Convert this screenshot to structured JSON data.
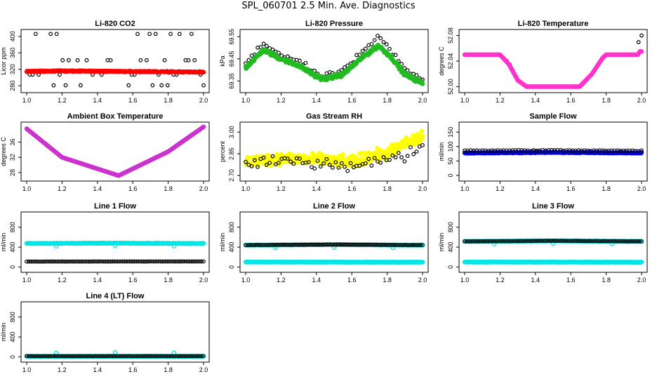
{
  "page": {
    "title": "SPL_060701  2.5 Min. Ave. Diagnostics"
  },
  "chart_data": [
    {
      "id": "co2",
      "type": "scatter",
      "title": "Li-820 CO2",
      "ylabel": "Licor ppm",
      "xlim": [
        1.0,
        2.0
      ],
      "ylim": [
        270,
        410
      ],
      "xticks": [
        1.0,
        1.2,
        1.4,
        1.6,
        1.8,
        2.0
      ],
      "xtick_labels": [
        "1.0",
        "1.2",
        "1.4",
        "1.6",
        "1.8",
        "2.0"
      ],
      "yticks": [
        280,
        320,
        360,
        400
      ],
      "ytick_labels": [
        "280",
        "320",
        "360",
        "400"
      ],
      "series": [
        {
          "name": "hourly",
          "color": "#000000",
          "style": "open",
          "density": "sparse",
          "levels": [
            406,
            342,
            307,
            281
          ],
          "values": []
        },
        {
          "name": "averaged",
          "color": "#ff0000",
          "style": "filled",
          "density": "dense",
          "values": [
            [
              1.0,
              315
            ],
            [
              1.25,
              316
            ],
            [
              1.5,
              315
            ],
            [
              1.75,
              314
            ],
            [
              2.0,
              313
            ]
          ]
        }
      ]
    },
    {
      "id": "pressure",
      "type": "scatter",
      "title": "Li-820 Pressure",
      "ylabel": "kPa",
      "xlim": [
        1.0,
        2.0
      ],
      "ylim": [
        69.31,
        69.57
      ],
      "xticks": [
        1.0,
        1.2,
        1.4,
        1.6,
        1.8,
        2.0
      ],
      "xtick_labels": [
        "1.0",
        "1.2",
        "1.4",
        "1.6",
        "1.8",
        "2.0"
      ],
      "yticks": [
        69.35,
        69.45,
        69.55
      ],
      "ytick_labels": [
        "69.35",
        "69.45",
        "69.55"
      ],
      "series": [
        {
          "name": "hourly",
          "color": "#000000",
          "style": "open",
          "density": "sparse",
          "noise": 0.015,
          "values": [
            [
              1.0,
              69.43
            ],
            [
              1.05,
              69.47
            ],
            [
              1.1,
              69.52
            ],
            [
              1.2,
              69.47
            ],
            [
              1.3,
              69.44
            ],
            [
              1.4,
              69.38
            ],
            [
              1.45,
              69.37
            ],
            [
              1.55,
              69.4
            ],
            [
              1.65,
              69.47
            ],
            [
              1.75,
              69.55
            ],
            [
              1.82,
              69.49
            ],
            [
              1.9,
              69.4
            ],
            [
              2.0,
              69.36
            ]
          ]
        },
        {
          "name": "averaged",
          "color": "#22bb22",
          "style": "filled",
          "density": "dense",
          "noise": 0.01,
          "values": [
            [
              1.0,
              69.41
            ],
            [
              1.05,
              69.45
            ],
            [
              1.1,
              69.49
            ],
            [
              1.2,
              69.45
            ],
            [
              1.3,
              69.42
            ],
            [
              1.4,
              69.37
            ],
            [
              1.45,
              69.36
            ],
            [
              1.55,
              69.38
            ],
            [
              1.65,
              69.45
            ],
            [
              1.75,
              69.51
            ],
            [
              1.82,
              69.46
            ],
            [
              1.9,
              69.38
            ],
            [
              2.0,
              69.34
            ]
          ]
        }
      ]
    },
    {
      "id": "temp",
      "type": "scatter",
      "title": "Li-820 Temperature",
      "ylabel": "degrees C",
      "xlim": [
        1.0,
        2.0
      ],
      "ylim": [
        51.995,
        52.085
      ],
      "xticks": [
        1.0,
        1.2,
        1.4,
        1.6,
        1.8,
        2.0
      ],
      "xtick_labels": [
        "1.0",
        "1.2",
        "1.4",
        "1.6",
        "1.8",
        "2.0"
      ],
      "yticks": [
        52.0,
        52.04,
        52.08
      ],
      "ytick_labels": [
        "52.00",
        "52.04",
        "52.08"
      ],
      "series": [
        {
          "name": "hourly",
          "color": "#000000",
          "style": "open",
          "density": "sparse",
          "values": [
            [
              1.0,
              52.05
            ],
            [
              1.2,
              52.05
            ],
            [
              1.25,
              52.037
            ],
            [
              1.3,
              52.01
            ],
            [
              1.35,
              52.0
            ],
            [
              1.65,
              52.0
            ],
            [
              1.72,
              52.02
            ],
            [
              1.78,
              52.045
            ],
            [
              1.8,
              52.05
            ],
            [
              1.97,
              52.05
            ],
            [
              1.99,
              52.08
            ]
          ]
        },
        {
          "name": "averaged",
          "color": "#ff33cc",
          "style": "filled",
          "density": "dense",
          "values": [
            [
              1.0,
              52.05
            ],
            [
              1.2,
              52.05
            ],
            [
              1.25,
              52.035
            ],
            [
              1.3,
              52.01
            ],
            [
              1.35,
              52.0
            ],
            [
              1.65,
              52.0
            ],
            [
              1.72,
              52.02
            ],
            [
              1.78,
              52.045
            ],
            [
              1.8,
              52.05
            ],
            [
              1.98,
              52.05
            ],
            [
              1.99,
              52.055
            ]
          ]
        }
      ]
    },
    {
      "id": "ambient",
      "type": "scatter",
      "title": "Ambient Box Temperature",
      "ylabel": "degrees C",
      "xlim": [
        1.0,
        2.0
      ],
      "ylim": [
        26.5,
        40.5
      ],
      "xticks": [
        1.0,
        1.2,
        1.4,
        1.6,
        1.8,
        2.0
      ],
      "xtick_labels": [
        "1.0",
        "1.2",
        "1.4",
        "1.6",
        "1.8",
        "2.0"
      ],
      "yticks": [
        28,
        32,
        36
      ],
      "ytick_labels": [
        "28",
        "32",
        "36"
      ],
      "series": [
        {
          "name": "hourly",
          "color": "#000000",
          "style": "open",
          "density": "sparse",
          "values": [
            [
              1.0,
              39.5
            ],
            [
              1.2,
              32.0
            ],
            [
              1.52,
              27.2
            ],
            [
              1.8,
              33.5
            ],
            [
              2.0,
              40.0
            ]
          ]
        },
        {
          "name": "averaged",
          "color": "#cc33cc",
          "style": "filled",
          "density": "dense",
          "values": [
            [
              1.0,
              39.5
            ],
            [
              1.2,
              32.0
            ],
            [
              1.52,
              27.2
            ],
            [
              1.8,
              33.5
            ],
            [
              2.0,
              40.0
            ]
          ]
        }
      ]
    },
    {
      "id": "rh",
      "type": "scatter",
      "title": "Gas Stream RH",
      "ylabel": "percent",
      "xlim": [
        1.0,
        2.0
      ],
      "ylim": [
        2.68,
        3.05
      ],
      "xticks": [
        1.0,
        1.2,
        1.4,
        1.6,
        1.8,
        2.0
      ],
      "xtick_labels": [
        "1.0",
        "1.2",
        "1.4",
        "1.6",
        "1.8",
        "2.0"
      ],
      "yticks": [
        2.7,
        2.85,
        3.0
      ],
      "ytick_labels": [
        "2.70",
        "2.85",
        "3.00"
      ],
      "series": [
        {
          "name": "averaged",
          "color": "#ffff00",
          "style": "filled",
          "density": "dense",
          "noise": 0.05,
          "values": [
            [
              1.0,
              2.79
            ],
            [
              1.2,
              2.82
            ],
            [
              1.4,
              2.81
            ],
            [
              1.6,
              2.79
            ],
            [
              1.7,
              2.83
            ],
            [
              1.8,
              2.85
            ],
            [
              1.9,
              2.92
            ],
            [
              2.0,
              2.97
            ]
          ]
        },
        {
          "name": "hourly",
          "color": "#000000",
          "style": "open",
          "density": "sparse",
          "noise": 0.045,
          "values": [
            [
              1.0,
              2.77
            ],
            [
              1.2,
              2.8
            ],
            [
              1.4,
              2.79
            ],
            [
              1.6,
              2.77
            ],
            [
              1.8,
              2.81
            ],
            [
              1.9,
              2.83
            ],
            [
              2.0,
              2.92
            ]
          ]
        }
      ]
    },
    {
      "id": "sample",
      "type": "scatter",
      "title": "Sample Flow",
      "ylabel": "ml/min",
      "xlim": [
        1.0,
        2.0
      ],
      "ylim": [
        -10,
        175
      ],
      "xticks": [
        1.0,
        1.2,
        1.4,
        1.6,
        1.8,
        2.0
      ],
      "xtick_labels": [
        "1.0",
        "1.2",
        "1.4",
        "1.6",
        "1.8",
        "2.0"
      ],
      "yticks": [
        0,
        50,
        100,
        150
      ],
      "ytick_labels": [
        "0",
        "50",
        "100",
        "150"
      ],
      "series": [
        {
          "name": "averaged",
          "color": "#0000dd",
          "style": "filled",
          "density": "dense",
          "noise": 2,
          "values": [
            [
              1.0,
              78
            ],
            [
              1.5,
              80
            ],
            [
              2.0,
              78
            ]
          ]
        },
        {
          "name": "hourly",
          "color": "#000000",
          "style": "open",
          "density": "sparse",
          "noise": 2,
          "values": [
            [
              1.0,
              86
            ],
            [
              1.5,
              87
            ],
            [
              2.0,
              85
            ]
          ]
        }
      ]
    },
    {
      "id": "line1",
      "type": "scatter",
      "title": "Line 1 Flow",
      "ylabel": "ml/min",
      "xlim": [
        1.0,
        2.0
      ],
      "ylim": [
        -50,
        1050
      ],
      "xticks": [
        1.0,
        1.2,
        1.4,
        1.6,
        1.8,
        2.0
      ],
      "xtick_labels": [
        "1.0",
        "1.2",
        "1.4",
        "1.6",
        "1.8",
        "2.0"
      ],
      "yticks": [
        0,
        400,
        800
      ],
      "ytick_labels": [
        "0",
        "400",
        "800"
      ],
      "series": [
        {
          "name": "cyan",
          "color": "#00e5e5",
          "style": "filled",
          "density": "dense",
          "noise": 8,
          "values": [
            [
              1.0,
              475
            ],
            [
              1.5,
              480
            ],
            [
              2.0,
              472
            ]
          ],
          "outliers": [
            [
              1.167,
              420
            ],
            [
              1.5,
              430
            ],
            [
              1.833,
              420
            ]
          ]
        },
        {
          "name": "hourly",
          "color": "#000000",
          "style": "open",
          "density": "medium",
          "noise": 2,
          "values": [
            [
              1.0,
              110
            ],
            [
              2.0,
              112
            ]
          ]
        }
      ]
    },
    {
      "id": "line2",
      "type": "scatter",
      "title": "Line 2 Flow",
      "ylabel": "ml/min",
      "xlim": [
        1.0,
        2.0
      ],
      "ylim": [
        -50,
        1050
      ],
      "xticks": [
        1.0,
        1.2,
        1.4,
        1.6,
        1.8,
        2.0
      ],
      "xtick_labels": [
        "1.0",
        "1.2",
        "1.4",
        "1.6",
        "1.8",
        "2.0"
      ],
      "yticks": [
        0,
        400,
        800
      ],
      "ytick_labels": [
        "0",
        "400",
        "800"
      ],
      "series": [
        {
          "name": "cyan-low",
          "color": "#00e5e5",
          "style": "filled",
          "density": "dense",
          "noise": 4,
          "values": [
            [
              1.0,
              100
            ],
            [
              2.0,
              98
            ]
          ]
        },
        {
          "name": "cyan-high",
          "color": "#00e5e5",
          "style": "filled",
          "density": "dense",
          "noise": 5,
          "values": [
            [
              1.0,
              440
            ],
            [
              1.5,
              450
            ],
            [
              2.0,
              440
            ]
          ],
          "outliers": [
            [
              1.167,
              385
            ],
            [
              1.5,
              390
            ],
            [
              1.833,
              385
            ]
          ]
        },
        {
          "name": "hourly",
          "color": "#000000",
          "style": "open",
          "density": "medium",
          "noise": 3,
          "values": [
            [
              1.0,
              440
            ],
            [
              1.5,
              452
            ],
            [
              2.0,
              440
            ]
          ]
        }
      ]
    },
    {
      "id": "line3",
      "type": "scatter",
      "title": "Line 3 Flow",
      "ylabel": "ml/min",
      "xlim": [
        1.0,
        2.0
      ],
      "ylim": [
        -50,
        1050
      ],
      "xticks": [
        1.0,
        1.2,
        1.4,
        1.6,
        1.8,
        2.0
      ],
      "xtick_labels": [
        "1.0",
        "1.2",
        "1.4",
        "1.6",
        "1.8",
        "2.0"
      ],
      "yticks": [
        0,
        400,
        800
      ],
      "ytick_labels": [
        "0",
        "400",
        "800"
      ],
      "series": [
        {
          "name": "cyan-low",
          "color": "#00e5e5",
          "style": "filled",
          "density": "dense",
          "noise": 4,
          "values": [
            [
              1.0,
              100
            ],
            [
              2.0,
              98
            ]
          ]
        },
        {
          "name": "cyan-high",
          "color": "#00e5e5",
          "style": "filled",
          "density": "dense",
          "noise": 5,
          "values": [
            [
              1.0,
              515
            ],
            [
              1.5,
              525
            ],
            [
              2.0,
              515
            ]
          ],
          "outliers": [
            [
              1.167,
              465
            ],
            [
              1.5,
              470
            ],
            [
              1.833,
              465
            ]
          ]
        },
        {
          "name": "hourly",
          "color": "#000000",
          "style": "open",
          "density": "medium",
          "noise": 3,
          "values": [
            [
              1.0,
              515
            ],
            [
              1.5,
              527
            ],
            [
              2.0,
              515
            ]
          ]
        }
      ]
    },
    {
      "id": "line4",
      "type": "scatter",
      "title": "Line 4 (LT) Flow",
      "ylabel": "ml/min",
      "xlim": [
        1.0,
        2.0
      ],
      "ylim": [
        -50,
        1050
      ],
      "xticks": [
        1.0,
        1.2,
        1.4,
        1.6,
        1.8,
        2.0
      ],
      "xtick_labels": [
        "1.0",
        "1.2",
        "1.4",
        "1.6",
        "1.8",
        "2.0"
      ],
      "yticks": [
        0,
        400,
        800
      ],
      "ytick_labels": [
        "0",
        "400",
        "800"
      ],
      "series": [
        {
          "name": "cyan",
          "color": "#00e5e5",
          "style": "filled",
          "density": "dense",
          "noise": 3,
          "values": [
            [
              1.0,
              12
            ],
            [
              2.0,
              12
            ]
          ],
          "outliers": [
            [
              1.167,
              80
            ],
            [
              1.5,
              90
            ],
            [
              1.833,
              80
            ]
          ]
        },
        {
          "name": "hourly",
          "color": "#000000",
          "style": "open",
          "density": "medium",
          "noise": 2,
          "values": [
            [
              1.0,
              15
            ],
            [
              2.0,
              15
            ]
          ]
        }
      ]
    }
  ]
}
